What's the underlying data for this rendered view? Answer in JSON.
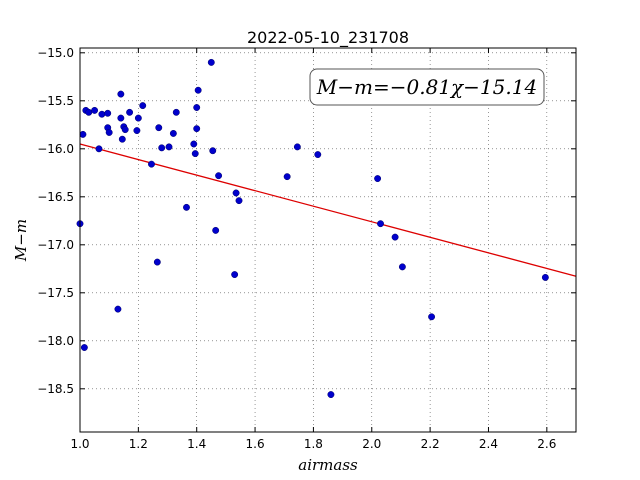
{
  "chart_data": {
    "type": "scatter",
    "title": "2022-05-10_231708",
    "xlabel": "airmass",
    "ylabel": "M−m",
    "xlim": [
      1.0,
      2.7
    ],
    "ylim": [
      -18.95,
      -14.95
    ],
    "y_inverted": true,
    "grid": true,
    "x_ticks": [
      1.0,
      1.2,
      1.4,
      1.6,
      1.8,
      2.0,
      2.2,
      2.4,
      2.6
    ],
    "x_tick_labels": [
      "1.0",
      "1.2",
      "1.4",
      "1.6",
      "1.8",
      "2.0",
      "2.2",
      "2.4",
      "2.6"
    ],
    "y_ticks": [
      -15.0,
      -15.5,
      -16.0,
      -16.5,
      -17.0,
      -17.5,
      -18.0,
      -18.5
    ],
    "y_tick_labels": [
      "−15.0",
      "−15.5",
      "−16.0",
      "−16.5",
      "−17.0",
      "−17.5",
      "−18.0",
      "−18.5"
    ],
    "annotation": "M−m=−0.81χ−15.14",
    "fit": {
      "slope": -0.81,
      "intercept": -15.14,
      "color": "#dd0000"
    },
    "marker_color": "#0000cc",
    "points": [
      [
        1.0,
        -16.78
      ],
      [
        1.01,
        -15.85
      ],
      [
        1.015,
        -18.07
      ],
      [
        1.02,
        -15.6
      ],
      [
        1.03,
        -15.62
      ],
      [
        1.05,
        -15.6
      ],
      [
        1.065,
        -16.0
      ],
      [
        1.075,
        -15.64
      ],
      [
        1.095,
        -15.63
      ],
      [
        1.095,
        -15.78
      ],
      [
        1.1,
        -15.83
      ],
      [
        1.13,
        -17.67
      ],
      [
        1.14,
        -15.43
      ],
      [
        1.14,
        -15.68
      ],
      [
        1.145,
        -15.9
      ],
      [
        1.15,
        -15.77
      ],
      [
        1.155,
        -15.8
      ],
      [
        1.17,
        -15.62
      ],
      [
        1.195,
        -15.81
      ],
      [
        1.2,
        -15.68
      ],
      [
        1.215,
        -15.55
      ],
      [
        1.245,
        -16.16
      ],
      [
        1.265,
        -17.18
      ],
      [
        1.27,
        -15.78
      ],
      [
        1.28,
        -15.99
      ],
      [
        1.305,
        -15.98
      ],
      [
        1.32,
        -15.84
      ],
      [
        1.33,
        -15.62
      ],
      [
        1.365,
        -16.61
      ],
      [
        1.39,
        -15.95
      ],
      [
        1.395,
        -16.05
      ],
      [
        1.4,
        -15.79
      ],
      [
        1.4,
        -15.57
      ],
      [
        1.405,
        -15.39
      ],
      [
        1.45,
        -15.1
      ],
      [
        1.455,
        -16.02
      ],
      [
        1.465,
        -16.85
      ],
      [
        1.475,
        -16.28
      ],
      [
        1.53,
        -17.31
      ],
      [
        1.535,
        -16.46
      ],
      [
        1.545,
        -16.54
      ],
      [
        1.71,
        -16.29
      ],
      [
        1.745,
        -15.98
      ],
      [
        1.815,
        -16.06
      ],
      [
        1.86,
        -18.56
      ],
      [
        2.02,
        -16.31
      ],
      [
        2.03,
        -16.78
      ],
      [
        2.08,
        -16.92
      ],
      [
        2.105,
        -17.23
      ],
      [
        2.205,
        -17.75
      ],
      [
        2.595,
        -17.34
      ]
    ]
  }
}
